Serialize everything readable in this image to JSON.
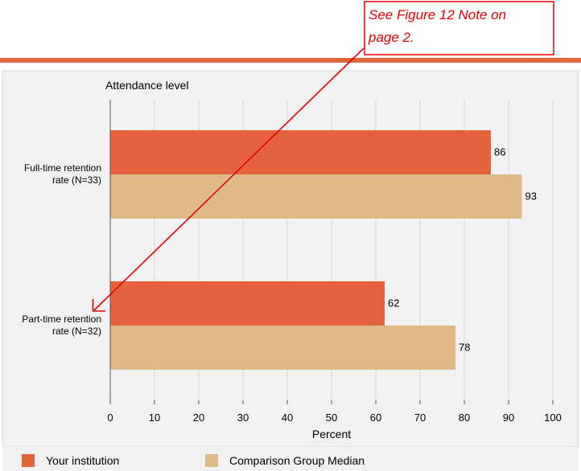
{
  "colors": {
    "your_institution": "#e5623f",
    "comparison": "#dfb987",
    "panel_background": "#f1f1f1",
    "gridline": "#d2d2d2",
    "top_rule": "#e0673e",
    "annotation": "#e30000"
  },
  "annotation": {
    "line1": "See Figure 12 Note on",
    "line2": "page 2."
  },
  "chart_data": {
    "type": "bar",
    "orientation": "horizontal",
    "title": "Attendance level",
    "xlabel": "Percent",
    "ylabel": "",
    "xlim": [
      0,
      100
    ],
    "ticks": [
      0,
      10,
      20,
      30,
      40,
      50,
      60,
      70,
      80,
      90,
      100
    ],
    "grid": true,
    "legend": "bottom",
    "categories": [
      [
        "Full-time retention",
        "rate (N=33)"
      ],
      [
        "Part-time retention",
        "rate (N=32)"
      ]
    ],
    "series": [
      {
        "name": "Your institution",
        "values": [
          86,
          62
        ],
        "color": "#e5623f"
      },
      {
        "name": "Comparison Group Median",
        "values": [
          93,
          78
        ],
        "color": "#dfb987"
      }
    ]
  }
}
